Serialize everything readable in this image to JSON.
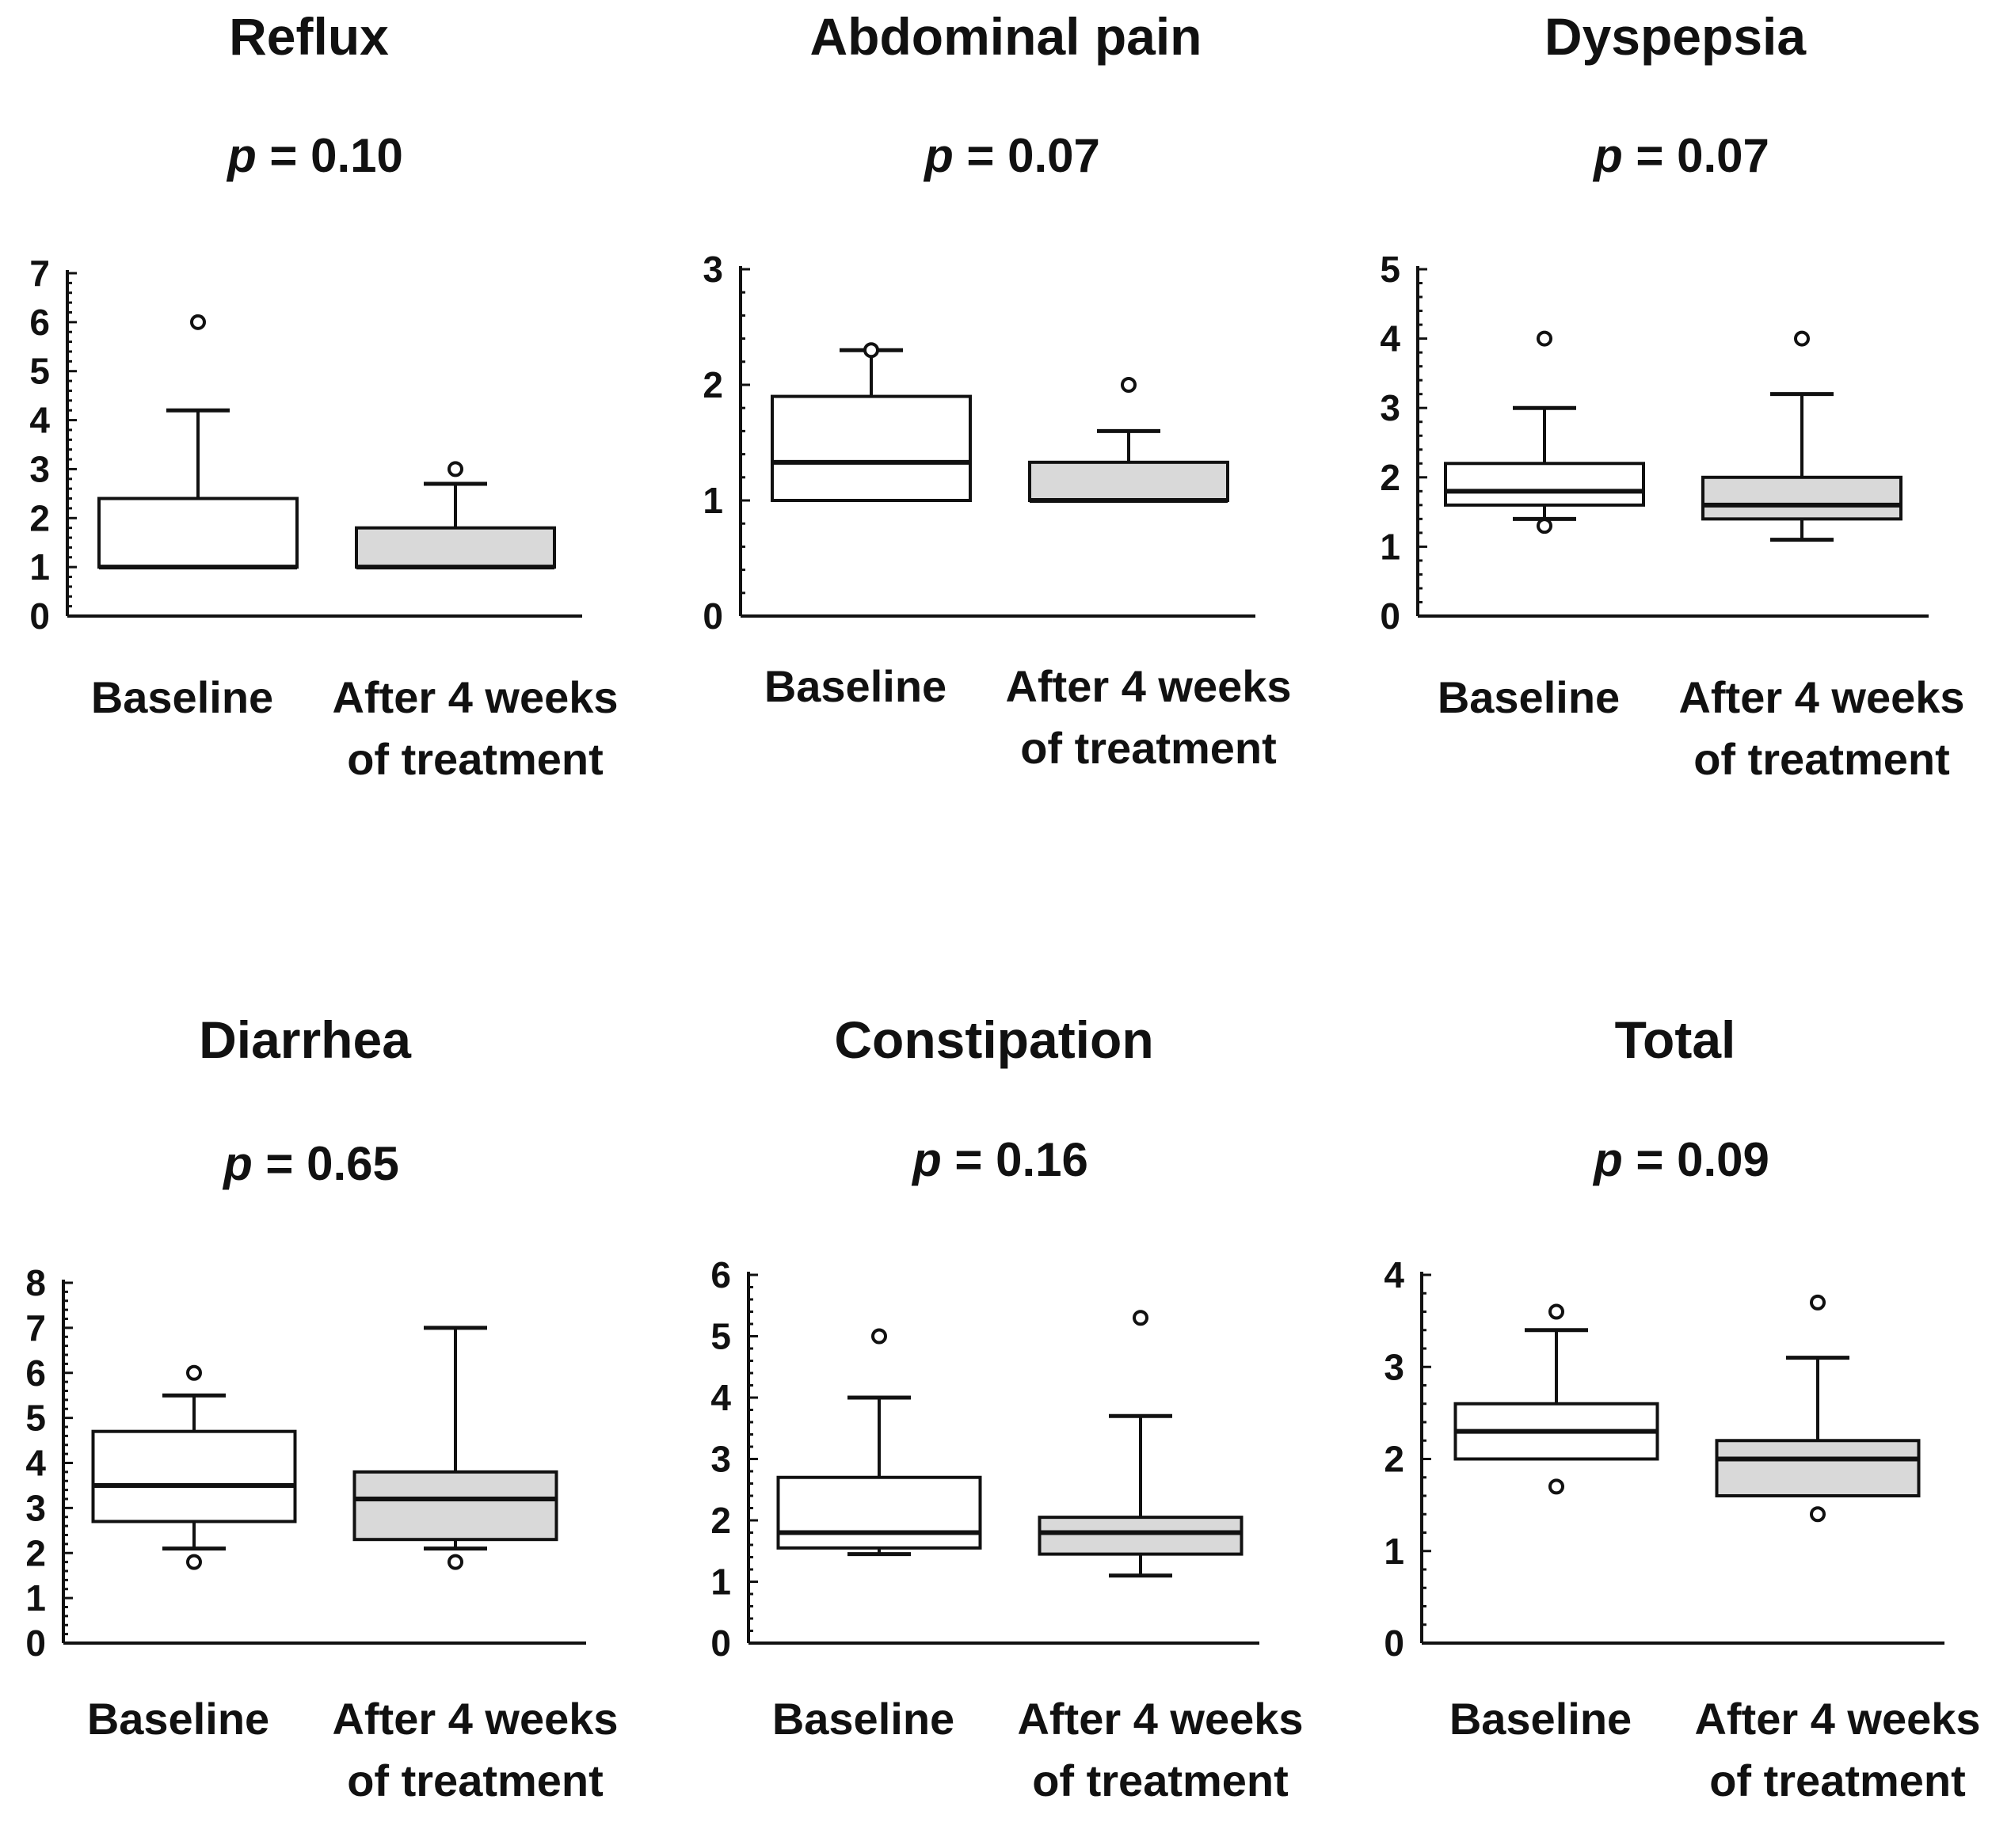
{
  "figure": {
    "categories": [
      "Baseline",
      "After 4 weeks of treatment"
    ],
    "category_labels": [
      {
        "line1": "Baseline",
        "line2": ""
      },
      {
        "line1": "After 4 weeks",
        "line2": "of treatment"
      }
    ],
    "p_label": "p"
  },
  "colors": {
    "baseline_fill": "#ffffff",
    "treatment_fill": "#d9d9d9",
    "stroke": "#111111"
  },
  "chart_data": [
    {
      "type": "boxplot",
      "title": "Reflux",
      "p_value": "= 0.10",
      "ylim": [
        0,
        7
      ],
      "yticks": [
        0,
        1,
        2,
        3,
        4,
        5,
        6,
        7
      ],
      "categories": [
        "Baseline",
        "After 4 weeks of treatment"
      ],
      "boxes": [
        {
          "name": "Baseline",
          "whisker_low": 1.0,
          "q1": 1.0,
          "median": 1.0,
          "q3": 2.4,
          "whisker_high": 4.2,
          "outliers": [
            6.0
          ]
        },
        {
          "name": "After 4 weeks of treatment",
          "whisker_low": 1.0,
          "q1": 1.0,
          "median": 1.0,
          "q3": 1.8,
          "whisker_high": 2.7,
          "outliers": [
            3.0
          ]
        }
      ]
    },
    {
      "type": "boxplot",
      "title": "Abdominal pain",
      "p_value": "= 0.07",
      "ylim": [
        0,
        3
      ],
      "yticks": [
        0,
        1,
        2,
        3
      ],
      "categories": [
        "Baseline",
        "After 4 weeks of treatment"
      ],
      "boxes": [
        {
          "name": "Baseline",
          "whisker_low": 1.0,
          "q1": 1.0,
          "median": 1.33,
          "q3": 1.9,
          "whisker_high": 2.3,
          "outliers": [
            2.3
          ]
        },
        {
          "name": "After 4 weeks of treatment",
          "whisker_low": 1.0,
          "q1": 1.0,
          "median": 1.0,
          "q3": 1.33,
          "whisker_high": 1.6,
          "outliers": [
            2.0
          ]
        }
      ]
    },
    {
      "type": "boxplot",
      "title": "Dyspepsia",
      "p_value": "= 0.07",
      "ylim": [
        0,
        5
      ],
      "yticks": [
        0,
        1,
        2,
        3,
        4,
        5
      ],
      "categories": [
        "Baseline",
        "After 4 weeks of treatment"
      ],
      "boxes": [
        {
          "name": "Baseline",
          "whisker_low": 1.4,
          "q1": 1.6,
          "median": 1.8,
          "q3": 2.2,
          "whisker_high": 3.0,
          "outliers": [
            1.3,
            4.0
          ]
        },
        {
          "name": "After 4 weeks of treatment",
          "whisker_low": 1.1,
          "q1": 1.4,
          "median": 1.6,
          "q3": 2.0,
          "whisker_high": 3.2,
          "outliers": [
            4.0
          ]
        }
      ]
    },
    {
      "type": "boxplot",
      "title": "Diarrhea",
      "p_value": "= 0.65",
      "ylim": [
        0,
        8
      ],
      "yticks": [
        0,
        1,
        2,
        3,
        4,
        5,
        6,
        7,
        8
      ],
      "categories": [
        "Baseline",
        "After 4 weeks of treatment"
      ],
      "boxes": [
        {
          "name": "Baseline",
          "whisker_low": 2.1,
          "q1": 2.7,
          "median": 3.5,
          "q3": 4.7,
          "whisker_high": 5.5,
          "outliers": [
            1.8,
            6.0
          ]
        },
        {
          "name": "After 4 weeks of treatment",
          "whisker_low": 2.1,
          "q1": 2.3,
          "median": 3.2,
          "q3": 3.8,
          "whisker_high": 7.0,
          "outliers": [
            1.8
          ]
        }
      ]
    },
    {
      "type": "boxplot",
      "title": "Constipation",
      "p_value": "= 0.16",
      "ylim": [
        0,
        6
      ],
      "yticks": [
        0,
        1,
        2,
        3,
        4,
        5,
        6
      ],
      "categories": [
        "Baseline",
        "After 4 weeks of treatment"
      ],
      "boxes": [
        {
          "name": "Baseline",
          "whisker_low": 1.45,
          "q1": 1.55,
          "median": 1.8,
          "q3": 2.7,
          "whisker_high": 4.0,
          "outliers": [
            5.0
          ]
        },
        {
          "name": "After 4 weeks of treatment",
          "whisker_low": 1.1,
          "q1": 1.45,
          "median": 1.8,
          "q3": 2.05,
          "whisker_high": 3.7,
          "outliers": [
            5.3
          ]
        }
      ]
    },
    {
      "type": "boxplot",
      "title": "Total",
      "p_value": "= 0.09",
      "ylim": [
        0,
        4
      ],
      "yticks": [
        0,
        1,
        2,
        3,
        4
      ],
      "categories": [
        "Baseline",
        "After 4 weeks of treatment"
      ],
      "boxes": [
        {
          "name": "Baseline",
          "whisker_low": 2.0,
          "q1": 2.0,
          "median": 2.3,
          "q3": 2.6,
          "whisker_high": 3.4,
          "outliers": [
            1.7,
            3.6
          ]
        },
        {
          "name": "After 4 weeks of treatment",
          "whisker_low": 1.6,
          "q1": 1.6,
          "median": 2.0,
          "q3": 2.2,
          "whisker_high": 3.1,
          "outliers": [
            1.4,
            3.7
          ]
        }
      ]
    }
  ]
}
